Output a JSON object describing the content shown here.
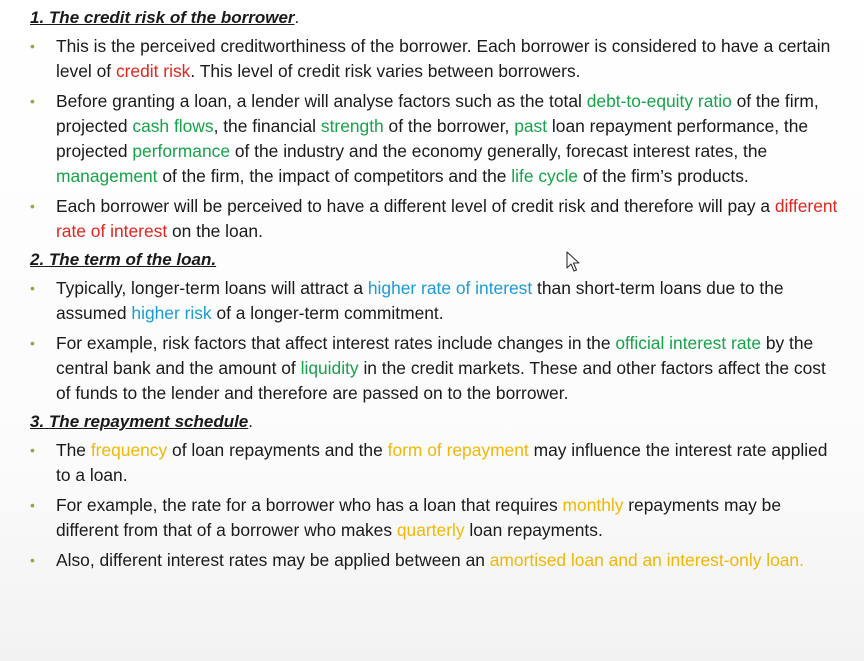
{
  "section1": {
    "number": "1.",
    "title": "The credit risk of the borrower",
    "title_tail": ".",
    "bullet1": {
      "p1": "This is the perceived creditworthiness of the borrower. Each borrower is considered to have a certain level of ",
      "h1": "credit risk",
      "p2": ". This level of credit risk varies between borrowers."
    },
    "bullet2": {
      "p1": "Before granting a loan, a lender will analyse factors such as the total ",
      "h1": "debt-to-equity ratio",
      "p2": " of the firm, projected ",
      "h2": "cash flows",
      "p3": ", the financial ",
      "h3": "strength",
      "p4": " of the borrower, ",
      "h4": "past",
      "p5": " loan repayment performance, the projected ",
      "h5": "performance",
      "p6": " of the industry and the economy generally, forecast interest rates, the ",
      "h6": "management",
      "p7": " of the firm, the impact of competitors and the ",
      "h7": "life cycle",
      "p8": " of the firm’s products."
    },
    "bullet3": {
      "p1": "Each borrower will be perceived to have a different level of credit risk and therefore will pay a ",
      "h1": "different rate of interest",
      "p2": " on the loan."
    }
  },
  "section2": {
    "number": "2.",
    "title": "The term of the loan.",
    "bullet1": {
      "p1": "Typically, longer-term loans will attract a ",
      "h1": "higher rate of interest",
      "p2": " than short-term loans due to the assumed ",
      "h2": "higher risk",
      "p3": " of a longer-term commitment."
    },
    "bullet2": {
      "p1": " For example, risk factors that affect interest rates include changes in the ",
      "h1": "official interest rate",
      "p2": " by the central bank and the amount of ",
      "h2": "liquidity",
      "p3": " in the credit markets. These and other factors affect the cost of funds to the lender and therefore are passed on to the borrower."
    }
  },
  "section3": {
    "number": "3.",
    "title": "The repayment schedule",
    "title_tail": ".",
    "bullet1": {
      "p1": "The ",
      "h1": "frequency",
      "p2": " of loan repayments and the ",
      "h2": "form of repayment",
      "p3": " may influence the interest rate applied to a loan."
    },
    "bullet2": {
      "p1": "For example, the rate for a borrower who has a loan that requires ",
      "h1": "monthly",
      "p2": " repayments may be different from that of a borrower who makes ",
      "h2": "quarterly",
      "p3": " loan repayments."
    },
    "bullet3": {
      "p1": "Also, different interest rates may be applied between an ",
      "h1": "amortised loan and an interest-only loan."
    }
  },
  "bullet_glyph": "•",
  "colors": {
    "red": "#e2261f",
    "green": "#16a34a",
    "blue": "#1a9bd7",
    "yellow": "#f2b705",
    "bullet": "#8faa3f"
  },
  "cursor_icon": "mouse-pointer-icon"
}
